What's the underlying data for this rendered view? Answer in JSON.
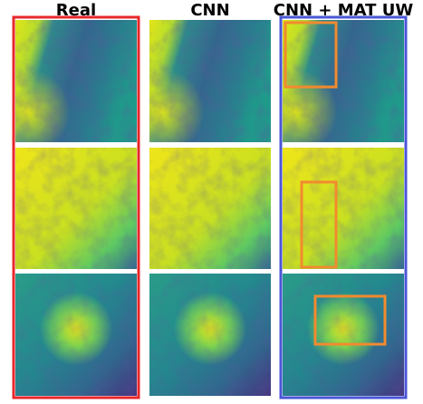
{
  "titles": [
    "Real",
    "CNN",
    "CNN + MAT UW"
  ]
}
